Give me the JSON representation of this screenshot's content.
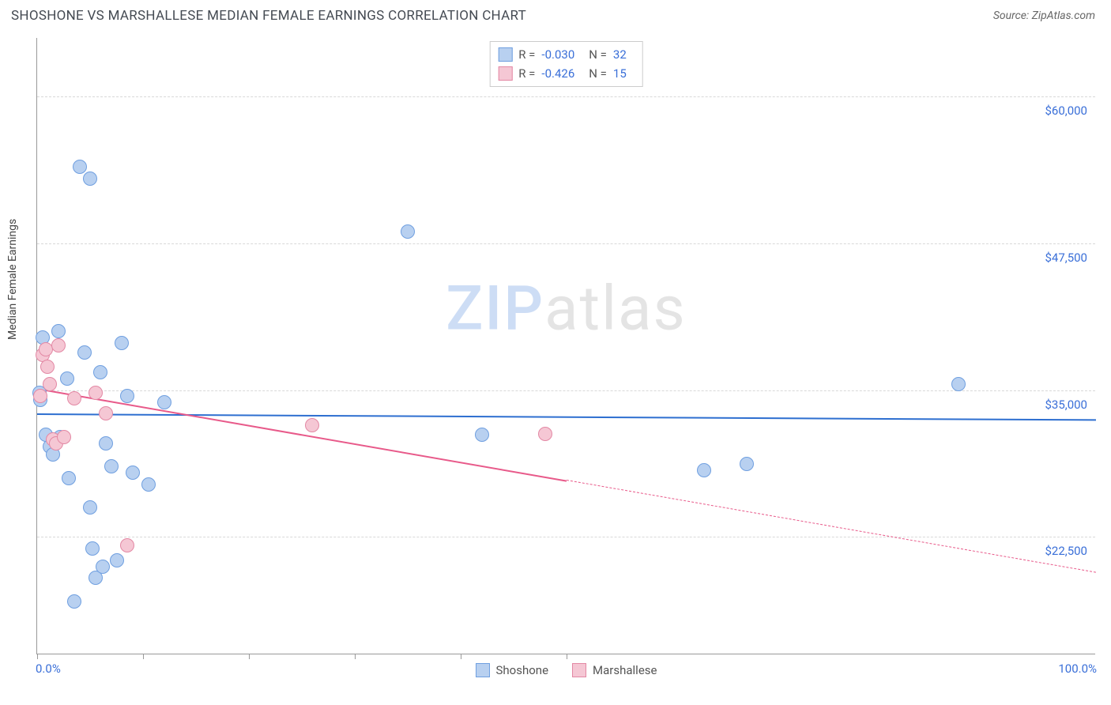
{
  "header": {
    "title": "SHOSHONE VS MARSHALLESE MEDIAN FEMALE EARNINGS CORRELATION CHART",
    "source": "Source: ZipAtlas.com"
  },
  "chart": {
    "type": "scatter",
    "ylabel": "Median Female Earnings",
    "background_color": "#ffffff",
    "grid_color": "#d8d8d8",
    "axis_color": "#999999",
    "label_color": "#3a6fd8",
    "xlim": [
      0,
      100
    ],
    "ylim": [
      12500,
      65000
    ],
    "xaxis_left_label": "0.0%",
    "xaxis_right_label": "100.0%",
    "x_ticks": [
      0,
      10,
      20,
      30,
      40,
      50
    ],
    "y_gridlines": [
      {
        "value": 22500,
        "label": "$22,500"
      },
      {
        "value": 35000,
        "label": "$35,000"
      },
      {
        "value": 47500,
        "label": "$47,500"
      },
      {
        "value": 60000,
        "label": "$60,000"
      }
    ],
    "marker_radius": 9,
    "marker_border_width": 1,
    "series": [
      {
        "name": "Shoshone",
        "fill_color": "#b8d0f0",
        "border_color": "#6f9fe0",
        "trend_color": "#2e6fd0",
        "correlation": "-0.030",
        "n": "32",
        "trend": {
          "x1": 0,
          "y1": 33000,
          "x2": 100,
          "y2": 32500,
          "dashed_from": null
        },
        "points": [
          {
            "x": 0.2,
            "y": 34800
          },
          {
            "x": 0.3,
            "y": 34200
          },
          {
            "x": 0.5,
            "y": 39500
          },
          {
            "x": 0.8,
            "y": 31200
          },
          {
            "x": 1.2,
            "y": 30200
          },
          {
            "x": 1.5,
            "y": 29500
          },
          {
            "x": 2.0,
            "y": 40000
          },
          {
            "x": 2.2,
            "y": 31000
          },
          {
            "x": 2.8,
            "y": 36000
          },
          {
            "x": 3.0,
            "y": 27500
          },
          {
            "x": 3.5,
            "y": 17000
          },
          {
            "x": 4.0,
            "y": 54000
          },
          {
            "x": 4.5,
            "y": 38200
          },
          {
            "x": 5.0,
            "y": 53000
          },
          {
            "x": 5.0,
            "y": 25000
          },
          {
            "x": 5.2,
            "y": 21500
          },
          {
            "x": 5.5,
            "y": 19000
          },
          {
            "x": 6.0,
            "y": 36500
          },
          {
            "x": 6.2,
            "y": 20000
          },
          {
            "x": 6.5,
            "y": 30500
          },
          {
            "x": 7.0,
            "y": 28500
          },
          {
            "x": 7.5,
            "y": 20500
          },
          {
            "x": 8.0,
            "y": 39000
          },
          {
            "x": 8.5,
            "y": 34500
          },
          {
            "x": 9.0,
            "y": 28000
          },
          {
            "x": 10.5,
            "y": 27000
          },
          {
            "x": 12.0,
            "y": 34000
          },
          {
            "x": 35.0,
            "y": 48500
          },
          {
            "x": 42.0,
            "y": 31200
          },
          {
            "x": 63.0,
            "y": 28200
          },
          {
            "x": 67.0,
            "y": 28700
          },
          {
            "x": 87.0,
            "y": 35500
          }
        ]
      },
      {
        "name": "Marshallese",
        "fill_color": "#f5c7d4",
        "border_color": "#e388a4",
        "trend_color": "#e85a8a",
        "correlation": "-0.426",
        "n": "15",
        "trend": {
          "x1": 0,
          "y1": 35200,
          "x2": 100,
          "y2": 19500,
          "dashed_from": 50
        },
        "points": [
          {
            "x": 0.3,
            "y": 34500
          },
          {
            "x": 0.5,
            "y": 38000
          },
          {
            "x": 0.8,
            "y": 38500
          },
          {
            "x": 1.0,
            "y": 37000
          },
          {
            "x": 1.2,
            "y": 35500
          },
          {
            "x": 1.5,
            "y": 30800
          },
          {
            "x": 1.8,
            "y": 30500
          },
          {
            "x": 2.0,
            "y": 38800
          },
          {
            "x": 2.5,
            "y": 31000
          },
          {
            "x": 3.5,
            "y": 34300
          },
          {
            "x": 5.5,
            "y": 34800
          },
          {
            "x": 6.5,
            "y": 33000
          },
          {
            "x": 8.5,
            "y": 21800
          },
          {
            "x": 26.0,
            "y": 32000
          },
          {
            "x": 48.0,
            "y": 31300
          }
        ]
      }
    ],
    "legend_bottom": [
      {
        "label": "Shoshone",
        "fill": "#b8d0f0",
        "border": "#6f9fe0"
      },
      {
        "label": "Marshallese",
        "fill": "#f5c7d4",
        "border": "#e388a4"
      }
    ],
    "watermark": {
      "part1": "ZIP",
      "part2": "atlas"
    }
  }
}
